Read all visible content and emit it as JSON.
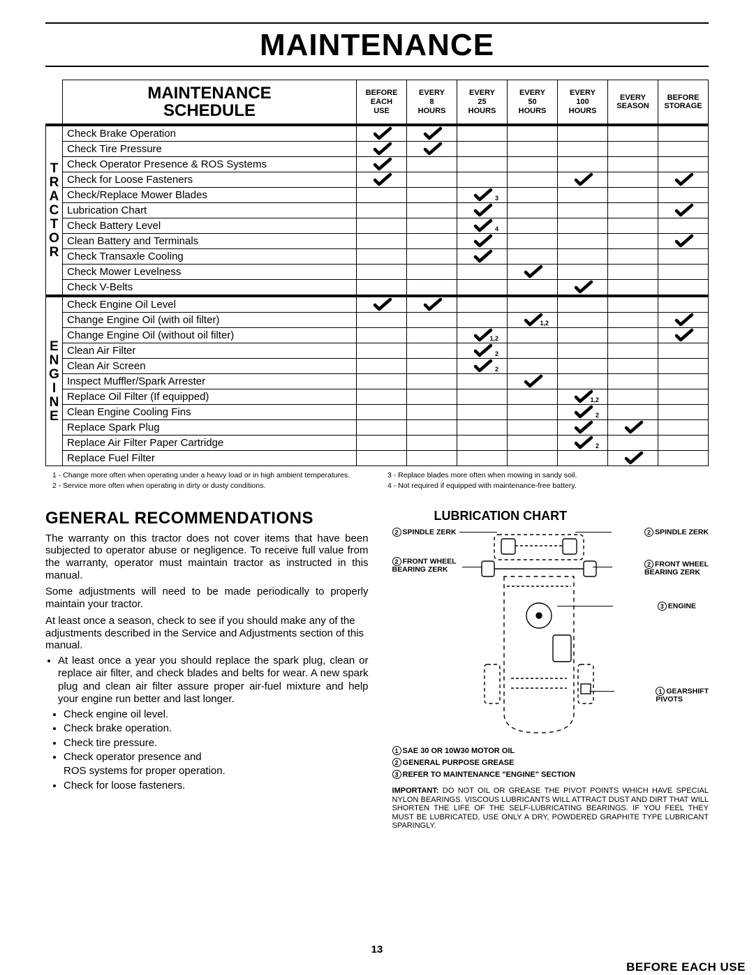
{
  "page_title": "MAINTENANCE",
  "page_number": "13",
  "schedule": {
    "heading_line1": "MAINTENANCE",
    "heading_line2": "SCHEDULE",
    "columns": [
      {
        "l1": "BEFORE",
        "l2": "EACH",
        "l3": "USE"
      },
      {
        "l1": "EVERY",
        "l2": "8",
        "l3": "HOURS"
      },
      {
        "l1": "EVERY",
        "l2": "25",
        "l3": "HOURS"
      },
      {
        "l1": "EVERY",
        "l2": "50",
        "l3": "HOURS"
      },
      {
        "l1": "EVERY",
        "l2": "100",
        "l3": "HOURS"
      },
      {
        "l1": "EVERY",
        "l2": "SEASON",
        "l3": ""
      },
      {
        "l1": "BEFORE",
        "l2": "STORAGE",
        "l3": ""
      }
    ],
    "sections": [
      {
        "label": "TRACTOR",
        "rows": [
          {
            "name": "Check Brake Operation",
            "marks": [
              {
                "c": 0
              },
              {
                "c": 1
              }
            ]
          },
          {
            "name": "Check Tire Pressure",
            "marks": [
              {
                "c": 0
              },
              {
                "c": 1
              }
            ]
          },
          {
            "name": "Check Operator Presence & ROS Systems",
            "marks": [
              {
                "c": 0
              }
            ]
          },
          {
            "name": "Check for Loose Fasteners",
            "marks": [
              {
                "c": 0
              },
              {
                "c": 4
              },
              {
                "c": 6
              }
            ]
          },
          {
            "name": "Check/Replace Mower Blades",
            "marks": [
              {
                "c": 2,
                "sub": "3"
              }
            ]
          },
          {
            "name": "Lubrication Chart",
            "marks": [
              {
                "c": 2
              },
              {
                "c": 6
              }
            ]
          },
          {
            "name": "Check Battery Level",
            "marks": [
              {
                "c": 2,
                "sub": "4"
              }
            ]
          },
          {
            "name": "Clean Battery and Terminals",
            "marks": [
              {
                "c": 2
              },
              {
                "c": 6
              }
            ]
          },
          {
            "name": "Check Transaxle Cooling",
            "marks": [
              {
                "c": 2
              }
            ]
          },
          {
            "name": "Check Mower Levelness",
            "marks": [
              {
                "c": 3
              }
            ]
          },
          {
            "name": "Check V-Belts",
            "marks": [
              {
                "c": 4
              }
            ]
          }
        ]
      },
      {
        "label": "ENGINE",
        "rows": [
          {
            "name": "Check Engine Oil Level",
            "marks": [
              {
                "c": 0
              },
              {
                "c": 1
              }
            ]
          },
          {
            "name": "Change Engine Oil (with oil filter)",
            "marks": [
              {
                "c": 3,
                "sub": "1,2"
              },
              {
                "c": 6
              }
            ]
          },
          {
            "name": "Change Engine Oil (without oil filter)",
            "marks": [
              {
                "c": 2,
                "sub": "1,2"
              },
              {
                "c": 6
              }
            ]
          },
          {
            "name": "Clean Air Filter",
            "marks": [
              {
                "c": 2,
                "sub": "2"
              }
            ]
          },
          {
            "name": "Clean Air Screen",
            "marks": [
              {
                "c": 2,
                "sub": "2"
              }
            ]
          },
          {
            "name": "Inspect Muffler/Spark Arrester",
            "marks": [
              {
                "c": 3
              }
            ]
          },
          {
            "name": "Replace Oil Filter (If equipped)",
            "marks": [
              {
                "c": 4,
                "sub": "1,2"
              }
            ]
          },
          {
            "name": "Clean Engine Cooling Fins",
            "marks": [
              {
                "c": 4,
                "sub": "2"
              }
            ]
          },
          {
            "name": "Replace Spark Plug",
            "marks": [
              {
                "c": 4
              },
              {
                "c": 5
              }
            ]
          },
          {
            "name": "Replace Air Filter Paper Cartridge",
            "marks": [
              {
                "c": 4,
                "sub": "2"
              }
            ]
          },
          {
            "name": "Replace Fuel Filter",
            "marks": [
              {
                "c": 5
              }
            ]
          }
        ]
      }
    ]
  },
  "footnotes": {
    "left": [
      "1 - Change more often when operating under a heavy load or in high ambient temperatures.",
      "2 - Service more often when operating in dirty or dusty conditions."
    ],
    "right": [
      "3 - Replace blades more often when mowing in sandy soil.",
      "4 - Not required if equipped with maintenance-free battery."
    ]
  },
  "general": {
    "heading": "GENERAL RECOMMENDATIONS",
    "p1": "The warranty on this tractor does not cover items that have been subjected to operator abuse or negligence.  To receive full value from the warranty, operator must maintain tractor as instructed in this manual.",
    "p2": "Some adjustments will need to be made periodically to properly maintain your tractor.",
    "p3": "At least once a season, check to see if you should make any of the adjustments described in the Service and Adjustments section of this manual.",
    "bullet1": "At least once a year you should replace the spark plug, clean or replace air filter, and check blades and belts for wear.  A new spark plug and clean air filter assure proper air-fuel mixture and help your engine run better and last longer."
  },
  "before_use": {
    "heading": "BEFORE EACH USE",
    "items": [
      "Check engine oil level.",
      "Check brake operation.",
      "Check tire pressure.",
      "Check operator presence and",
      "ROS systems for proper operation.",
      "Check for loose fasteners."
    ]
  },
  "lubrication": {
    "heading": "LUBRICATION CHART",
    "labels": {
      "spindleL": "SPINDLE ZERK",
      "spindleR": "SPINDLE ZERK",
      "frontL1": "FRONT WHEEL",
      "frontL2": "BEARING  ZERK",
      "frontR1": "FRONT WHEEL",
      "frontR2": "BEARING  ZERK",
      "engine": "ENGINE",
      "gear1": "GEARSHIFT",
      "gear2": "PIVOTS"
    },
    "legend": [
      {
        "n": "1",
        "t": "SAE 30 OR 10W30 MOTOR OIL"
      },
      {
        "n": "2",
        "t": "GENERAL PURPOSE GREASE"
      },
      {
        "n": "3",
        "t": "REFER TO MAINTENANCE \"ENGINE\"  SECTION"
      }
    ],
    "important_label": "IMPORTANT:",
    "important": "  DO NOT OIL OR GREASE THE PIVOT POINTS WHICH HAVE SPECIAL NYLON BEARINGS.  VISCOUS LUBRICANTS WILL ATTRACT DUST AND DIRT THAT WILL SHORTEN THE LIFE OF THE SELF-LUBRICATING BEARINGS.  IF YOU FEEL THEY MUST BE LUBRICATED, USE ONLY A DRY, POWDERED GRAPHITE TYPE LUBRICANT SPARINGLY."
  }
}
